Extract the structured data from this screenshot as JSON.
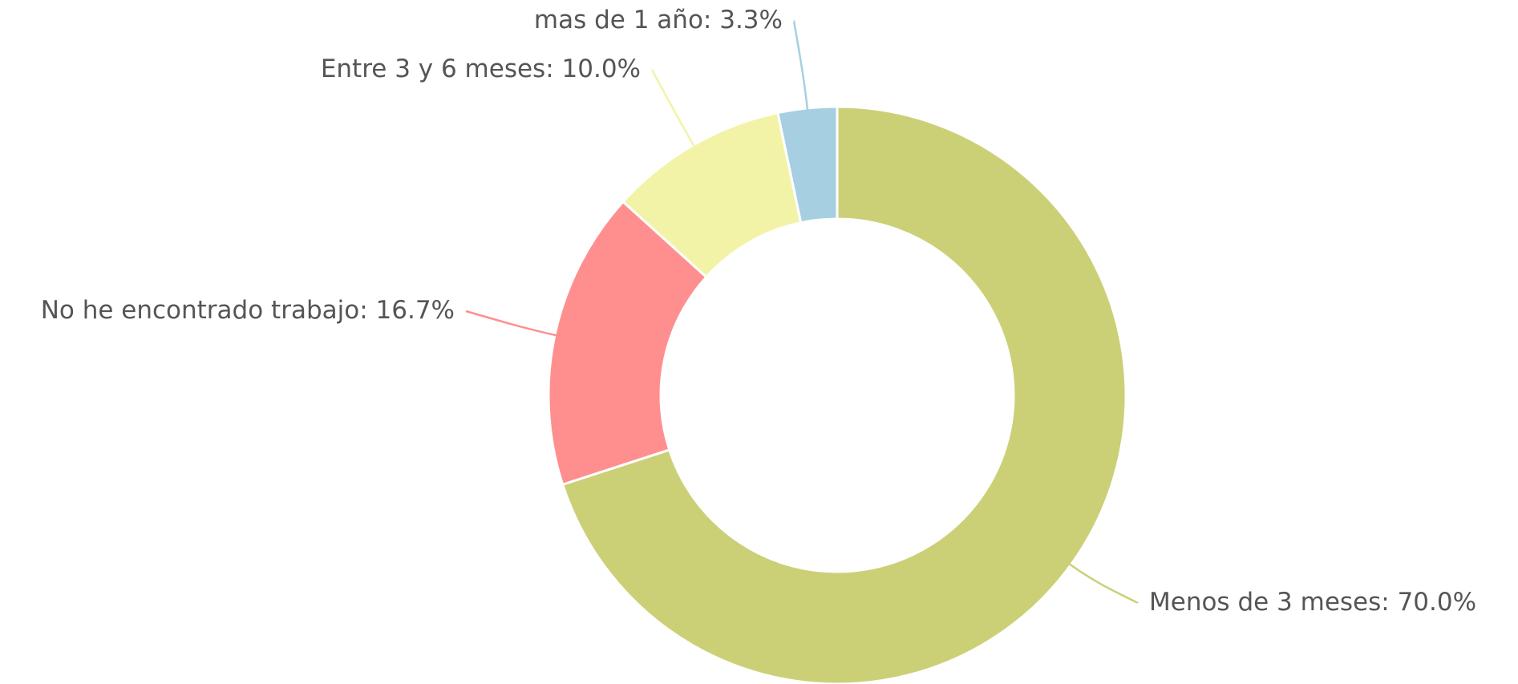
{
  "chart_data": {
    "type": "pie",
    "categories": [
      "Menos de 3 meses",
      "No he encontrado trabajo",
      "Entre 3 y 6 meses",
      "mas de 1 año"
    ],
    "values": [
      70.0,
      16.7,
      10.0,
      3.3
    ],
    "value_labels": [
      "70.0%",
      "16.7%",
      "10.0%",
      "3.3%"
    ],
    "label_separator": ": ",
    "colors": [
      "#cbd077",
      "#ff8f8f",
      "#f3f3a8",
      "#a6cfe2"
    ]
  }
}
